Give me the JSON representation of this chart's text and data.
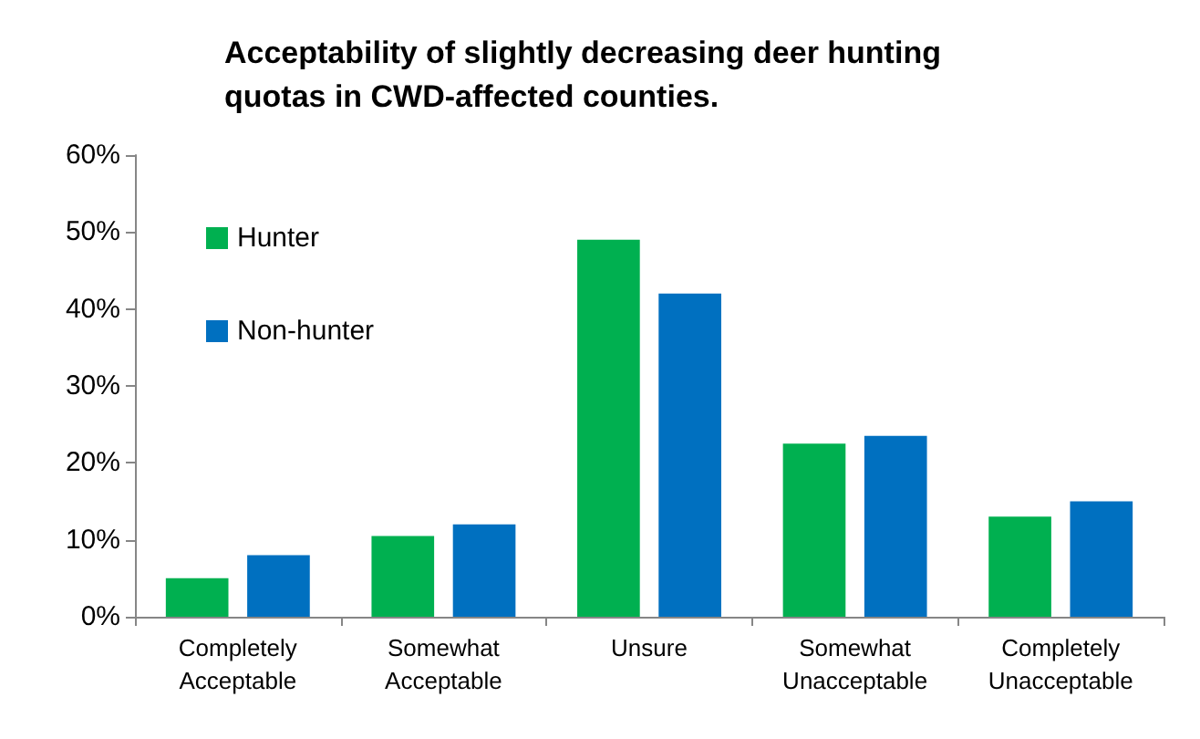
{
  "chart_data": {
    "type": "bar",
    "title": "Acceptability of slightly decreasing deer hunting\nquotas in CWD-affected counties.",
    "categories": [
      "Completely\nAcceptable",
      "Somewhat\nAcceptable",
      "Unsure",
      "Somewhat\nUnacceptable",
      "Completely\nUnacceptable"
    ],
    "series": [
      {
        "name": "Hunter",
        "color": "#00b050",
        "values": [
          5,
          10.5,
          49,
          22.5,
          13
        ]
      },
      {
        "name": "Non-hunter",
        "color": "#0070c0",
        "values": [
          8,
          12,
          42,
          23.5,
          15
        ]
      }
    ],
    "ylim": [
      0,
      60
    ],
    "yticks": [
      {
        "value": 0,
        "label": "0%"
      },
      {
        "value": 10,
        "label": "10%"
      },
      {
        "value": 20,
        "label": "20%"
      },
      {
        "value": 30,
        "label": "30%"
      },
      {
        "value": 40,
        "label": "40%"
      },
      {
        "value": 50,
        "label": "50%"
      },
      {
        "value": 60,
        "label": "60%"
      }
    ],
    "grid": false,
    "legend": "top left"
  }
}
